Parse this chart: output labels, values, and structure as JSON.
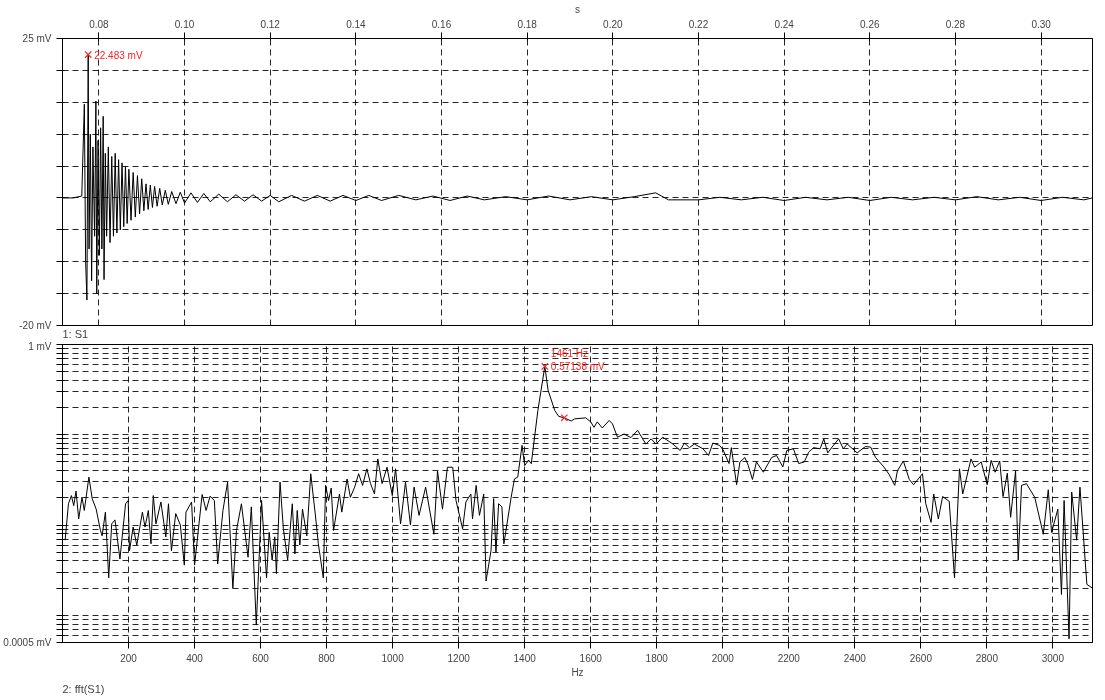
{
  "chart_data": [
    {
      "type": "line",
      "title": "1: S1",
      "xlabel": "s",
      "xlim": [
        0.0715,
        0.312
      ],
      "ylim": [
        -20,
        25
      ],
      "xticks": [
        0.08,
        {
          "value": 0.1,
          "label": "0.10"
        },
        0.12,
        0.14,
        0.16,
        0.18,
        {
          "value": 0.2,
          "label": "0.20"
        },
        0.22,
        0.24,
        0.26,
        0.28,
        {
          "value": 0.3,
          "label": "0.30"
        }
      ],
      "yticks": [
        {
          "value": -20,
          "label": "-20 mV"
        },
        {
          "value": -15,
          "label": null
        },
        {
          "value": -10,
          "label": null
        },
        {
          "value": -5,
          "label": null
        },
        {
          "value": 0,
          "label": null
        },
        {
          "value": 5,
          "label": null
        },
        {
          "value": 10,
          "label": null
        },
        {
          "value": 15,
          "label": null
        },
        {
          "value": 20,
          "label": null
        },
        {
          "value": 25,
          "label": "25 mV"
        }
      ],
      "grid": true,
      "series": [
        {
          "color": "#000000",
          "x": [
            0.0715,
            0.074,
            0.076,
            0.0766,
            0.0769,
            0.0772,
            0.0775,
            0.0777,
            0.078,
            0.0783,
            0.0786,
            0.079,
            0.0793,
            0.0795,
            0.0798,
            0.0801,
            0.0804,
            0.0807,
            0.081,
            0.0812,
            0.0815,
            0.0818,
            0.0822,
            0.0826,
            0.083,
            0.0834,
            0.0838,
            0.0842,
            0.0846,
            0.085,
            0.0854,
            0.0858,
            0.0862,
            0.0866,
            0.087,
            0.0875,
            0.088,
            0.0885,
            0.089,
            0.0895,
            0.09,
            0.0905,
            0.091,
            0.0915,
            0.092,
            0.0925,
            0.093,
            0.0936,
            0.0942,
            0.0948,
            0.0955,
            0.0962,
            0.097,
            0.098,
            0.099,
            0.1,
            0.1015,
            0.103,
            0.1045,
            0.106,
            0.108,
            0.11,
            0.112,
            0.114,
            0.116,
            0.118,
            0.12,
            0.122,
            0.125,
            0.128,
            0.131,
            0.134,
            0.137,
            0.14,
            0.143,
            0.146,
            0.15,
            0.154,
            0.158,
            0.162,
            0.166,
            0.17,
            0.175,
            0.18,
            0.185,
            0.19,
            0.195,
            0.2,
            0.205,
            0.21,
            0.213,
            0.22,
            0.225,
            0.23,
            0.235,
            0.24,
            0.245,
            0.25,
            0.255,
            0.26,
            0.265,
            0.27,
            0.275,
            0.28,
            0.285,
            0.29,
            0.295,
            0.3,
            0.305,
            0.31,
            0.3119
          ],
          "values": [
            0,
            0,
            0.3,
            14.7,
            -10,
            -16,
            22.483,
            -8,
            10,
            -13,
            8,
            -6,
            15.2,
            -15,
            9,
            -9,
            11,
            -8,
            12.8,
            -12.8,
            7,
            -6,
            8,
            -7,
            6.5,
            -6,
            7,
            -5.5,
            6,
            -5,
            5.5,
            -4.5,
            5,
            -4,
            4.5,
            -3.5,
            4,
            -3,
            3.5,
            -2.5,
            3,
            -2,
            2.2,
            -1.8,
            2,
            -1.5,
            1.8,
            -1.3,
            1.5,
            -1.1,
            1.2,
            -1,
            1,
            -0.9,
            0.9,
            -0.8,
            0.8,
            -0.7,
            0.7,
            -0.6,
            0.6,
            -0.6,
            0.5,
            -0.5,
            0.5,
            -0.5,
            0.4,
            -0.6,
            0.4,
            -0.5,
            0.4,
            -0.5,
            0.4,
            -0.4,
            0.4,
            -0.4,
            0.4,
            -0.3,
            0.3,
            -0.4,
            0.3,
            -0.3,
            0.2,
            -0.3,
            0.3,
            -0.3,
            0.2,
            -0.3,
            0.2,
            0.8,
            -0.3,
            -0.3,
            0.1,
            -0.3,
            0.1,
            -0.4,
            0.1,
            -0.3,
            0.1,
            -0.4,
            0.1,
            -0.3,
            0.1,
            -0.3,
            0.2,
            -0.3,
            0.1,
            -0.4,
            0.1,
            -0.3,
            0
          ]
        },
        {
          "type": "scatter",
          "marker": "cross",
          "color": "#ff2020",
          "x": [
            0.0775
          ],
          "values": [
            22.483
          ]
        }
      ],
      "annotations": [
        "22.483 mV"
      ]
    },
    {
      "type": "line",
      "title": "2: fft(S1)",
      "xlabel": "Hz",
      "log": "y",
      "xlim": [
        0,
        3120
      ],
      "ylim": [
        0.0005,
        1
      ],
      "xticks": [
        200,
        400,
        600,
        800,
        1000,
        1200,
        1400,
        1600,
        1800,
        2000,
        2200,
        2400,
        2600,
        2800,
        3000
      ],
      "yticks": [
        {
          "value": 0.0005,
          "label": "0.0005 mV"
        },
        {
          "value": 0.0006,
          "label": null
        },
        {
          "value": 0.0007,
          "label": null
        },
        {
          "value": 0.0008,
          "label": null
        },
        {
          "value": 0.0009,
          "label": null
        },
        {
          "value": 0.001,
          "label": null
        },
        {
          "value": 0.002,
          "label": null
        },
        {
          "value": 0.003,
          "label": null
        },
        {
          "value": 0.004,
          "label": null
        },
        {
          "value": 0.005,
          "label": null
        },
        {
          "value": 0.006,
          "label": null
        },
        {
          "value": 0.007,
          "label": null
        },
        {
          "value": 0.008,
          "label": null
        },
        {
          "value": 0.009,
          "label": null
        },
        {
          "value": 0.01,
          "label": null
        },
        {
          "value": 0.02,
          "label": null
        },
        {
          "value": 0.03,
          "label": null
        },
        {
          "value": 0.04,
          "label": null
        },
        {
          "value": 0.05,
          "label": null
        },
        {
          "value": 0.06,
          "label": null
        },
        {
          "value": 0.07,
          "label": null
        },
        {
          "value": 0.08,
          "label": null
        },
        {
          "value": 0.09,
          "label": null
        },
        {
          "value": 0.1,
          "label": null
        },
        {
          "value": 0.2,
          "label": null
        },
        {
          "value": 0.3,
          "label": null
        },
        {
          "value": 0.4,
          "label": null
        },
        {
          "value": 0.5,
          "label": null
        },
        {
          "value": 0.6,
          "label": null
        },
        {
          "value": 0.7,
          "label": null
        },
        {
          "value": 0.8,
          "label": null
        },
        {
          "value": 0.9,
          "label": null
        },
        {
          "value": 1,
          "label": "1 mV"
        }
      ],
      "grid": true,
      "series": [
        {
          "color": "#000000",
          "x": [
            8,
            18,
            27,
            34,
            41,
            49,
            59,
            66,
            80,
            90,
            102,
            115,
            120,
            130,
            140,
            149,
            159,
            174,
            191,
            199,
            203,
            214,
            225,
            242,
            250,
            260,
            268,
            275,
            283,
            298,
            313,
            321,
            330,
            343,
            357,
            369,
            374,
            391,
            400,
            423,
            435,
            447,
            460,
            470,
            486,
            500,
            516,
            527,
            542,
            562,
            572,
            587,
            603,
            618,
            626,
            635,
            643,
            648,
            659,
            669,
            682,
            696,
            704,
            711,
            719,
            727,
            740,
            752,
            765,
            775,
            790,
            797,
            806,
            814,
            821,
            839,
            846,
            862,
            872,
            885,
            897,
            909,
            922,
            933,
            945,
            955,
            968,
            983,
            999,
            1009,
            1024,
            1039,
            1054,
            1065,
            1080,
            1100,
            1125,
            1136,
            1151,
            1166,
            1182,
            1192,
            1212,
            1222,
            1237,
            1242,
            1253,
            1263,
            1276,
            1283,
            1298,
            1306,
            1313,
            1321,
            1331,
            1337,
            1359,
            1369,
            1379,
            1392,
            1400,
            1412,
            1420,
            1440,
            1461,
            1471,
            1491,
            1503,
            1520,
            1541,
            1551,
            1585,
            1600,
            1610,
            1620,
            1635,
            1656,
            1666,
            1681,
            1701,
            1722,
            1742,
            1767,
            1783,
            1798,
            1818,
            1849,
            1871,
            1884,
            1899,
            1914,
            1940,
            1957,
            1970,
            1991,
            2001,
            2019,
            2026,
            2042,
            2052,
            2067,
            2077,
            2090,
            2102,
            2123,
            2148,
            2163,
            2182,
            2194,
            2214,
            2230,
            2247,
            2260,
            2275,
            2295,
            2306,
            2318,
            2331,
            2351,
            2365,
            2377,
            2407,
            2432,
            2448,
            2463,
            2488,
            2504,
            2521,
            2529,
            2547,
            2565,
            2578,
            2605,
            2615,
            2631,
            2639,
            2653,
            2666,
            2686,
            2702,
            2717,
            2727,
            2752,
            2763,
            2783,
            2801,
            2813,
            2825,
            2839,
            2849,
            2862,
            2872,
            2887,
            2895,
            2905,
            2920,
            2945,
            2971,
            2986,
            2996,
            3015,
            3026,
            3034,
            3049,
            3057,
            3072,
            3082,
            3103,
            3120
          ],
          "values": [
            0.0068,
            0.0172,
            0.0212,
            0.0164,
            0.0238,
            0.0117,
            0.0203,
            0.0145,
            0.034,
            0.0196,
            0.015,
            0.0087,
            0.0076,
            0.0139,
            0.0026,
            0.0103,
            0.0114,
            0.0042,
            0.0172,
            0.0187,
            0.0052,
            0.0095,
            0.006,
            0.0139,
            0.0095,
            0.0145,
            0.0062,
            0.0212,
            0.0103,
            0.018,
            0.0074,
            0.0172,
            0.0052,
            0.0134,
            0.01,
            0.0036,
            0.0139,
            0.018,
            0.0036,
            0.0218,
            0.0145,
            0.0209,
            0.0187,
            0.0037,
            0.0145,
            0.0299,
            0.002,
            0.0087,
            0.0172,
            0.0044,
            0.0159,
            0.00078,
            0.0187,
            0.0026,
            0.0083,
            0.0041,
            0.0074,
            0.0029,
            0.0299,
            0.0091,
            0.0041,
            0.0172,
            0.0048,
            0.0145,
            0.006,
            0.015,
            0.0076,
            0.037,
            0.0139,
            0.0062,
            0.0026,
            0.0275,
            0.0187,
            0.0257,
            0.0087,
            0.0221,
            0.0139,
            0.0324,
            0.0203,
            0.0263,
            0.037,
            0.0275,
            0.042,
            0.0288,
            0.0221,
            0.054,
            0.0288,
            0.0437,
            0.0212,
            0.042,
            0.0103,
            0.0299,
            0.01,
            0.0263,
            0.0128,
            0.0263,
            0.0079,
            0.0398,
            0.015,
            0.0437,
            0.0437,
            0.0187,
            0.0091,
            0.018,
            0.0221,
            0.0117,
            0.0275,
            0.0128,
            0.0221,
            0.0024,
            0.0052,
            0.0196,
            0.005,
            0.0172,
            0.0159,
            0.0062,
            0.0203,
            0.0324,
            0.034,
            0.0764,
            0.0457,
            0.0524,
            0.0478,
            0.186,
            0.57138,
            0.311,
            0.186,
            0.16,
            0.154,
            0.142,
            0.15,
            0.154,
            0.139,
            0.121,
            0.139,
            0.119,
            0.144,
            0.132,
            0.094,
            0.102,
            0.093,
            0.112,
            0.079,
            0.09,
            0.079,
            0.094,
            0.079,
            0.067,
            0.081,
            0.072,
            0.079,
            0.07,
            0.059,
            0.081,
            0.076,
            0.068,
            0.048,
            0.072,
            0.028,
            0.05,
            0.056,
            0.046,
            0.032,
            0.05,
            0.0385,
            0.056,
            0.059,
            0.044,
            0.067,
            0.07,
            0.048,
            0.05,
            0.064,
            0.072,
            0.07,
            0.09,
            0.063,
            0.073,
            0.09,
            0.07,
            0.079,
            0.063,
            0.074,
            0.073,
            0.056,
            0.044,
            0.0363,
            0.0275,
            0.0398,
            0.0513,
            0.032,
            0.028,
            0.037,
            0.0172,
            0.0107,
            0.0221,
            0.0117,
            0.0207,
            0.0183,
            0.0026,
            0.042,
            0.0221,
            0.054,
            0.0437,
            0.05,
            0.028,
            0.052,
            0.0385,
            0.0513,
            0.0207,
            0.0375,
            0.0122,
            0.0398,
            0.0041,
            0.0275,
            0.0287,
            0.0203,
            0.0079,
            0.0246,
            0.0083,
            0.015,
            0.0017,
            0.0187,
            0.00055,
            0.0232,
            0.0068,
            0.0263,
            0.0022,
            0.002
          ]
        },
        {
          "type": "scatter",
          "marker": "cross",
          "color": "#ff2020",
          "x": [
            1461,
            1520
          ],
          "values": [
            0.57138,
            0.154
          ]
        }
      ],
      "annotations": [
        "1461 Hz",
        "0.57138 mV"
      ]
    }
  ]
}
